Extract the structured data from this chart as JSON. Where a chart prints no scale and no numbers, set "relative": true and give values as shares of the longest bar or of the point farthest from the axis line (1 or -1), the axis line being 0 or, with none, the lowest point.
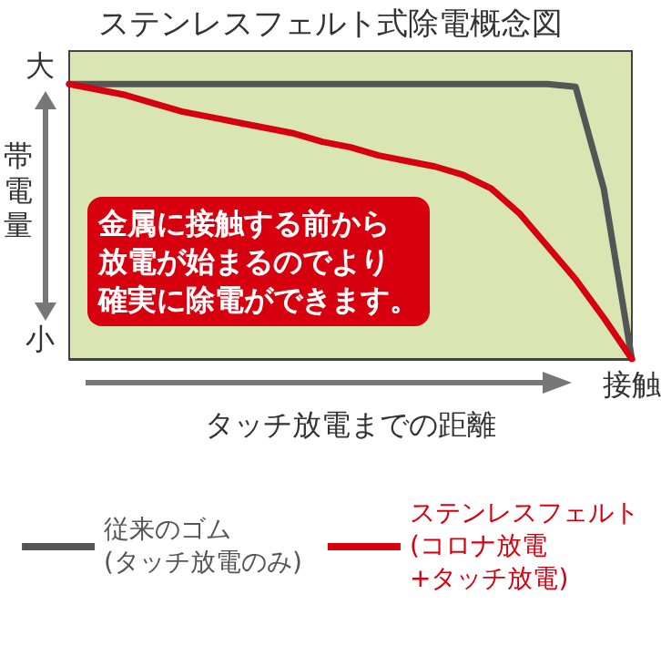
{
  "chart_data": {
    "type": "line",
    "title": "ステンレスフェルト式除電概念図",
    "ylabel": "帯電量",
    "xlabel": "タッチ放電までの距離",
    "categories": [
      null,
      null,
      null,
      null,
      null,
      null,
      null,
      null,
      null,
      null,
      null,
      null,
      null,
      null,
      null,
      null,
      null,
      null,
      null,
      null,
      null
    ],
    "relative": true,
    "series": [
      {
        "name": "従来のゴム\n(タッチ放電のみ)",
        "color": "#555555",
        "values": [
          1,
          1,
          1,
          1,
          1,
          1,
          1,
          1,
          1,
          1,
          1,
          1,
          1,
          1,
          1,
          1,
          1,
          1,
          0.99,
          0.62,
          0
        ]
      },
      {
        "name": "ステンレスフェルト\n(コロナ放電\n+タッチ放電)",
        "color": "#d7000f",
        "values": [
          1,
          0.98,
          0.96,
          0.93,
          0.9,
          0.88,
          0.86,
          0.84,
          0.82,
          0.79,
          0.77,
          0.74,
          0.72,
          0.7,
          0.67,
          0.62,
          0.53,
          0.41,
          0.29,
          0.15,
          0
        ]
      }
    ],
    "annotations": [
      "金属に接触する前から放電が始まるのでより確実に除電ができます。",
      "大",
      "小",
      "接触"
    ],
    "marker": "none",
    "line_style": "solid",
    "legend": "bottom",
    "grid": false
  }
}
